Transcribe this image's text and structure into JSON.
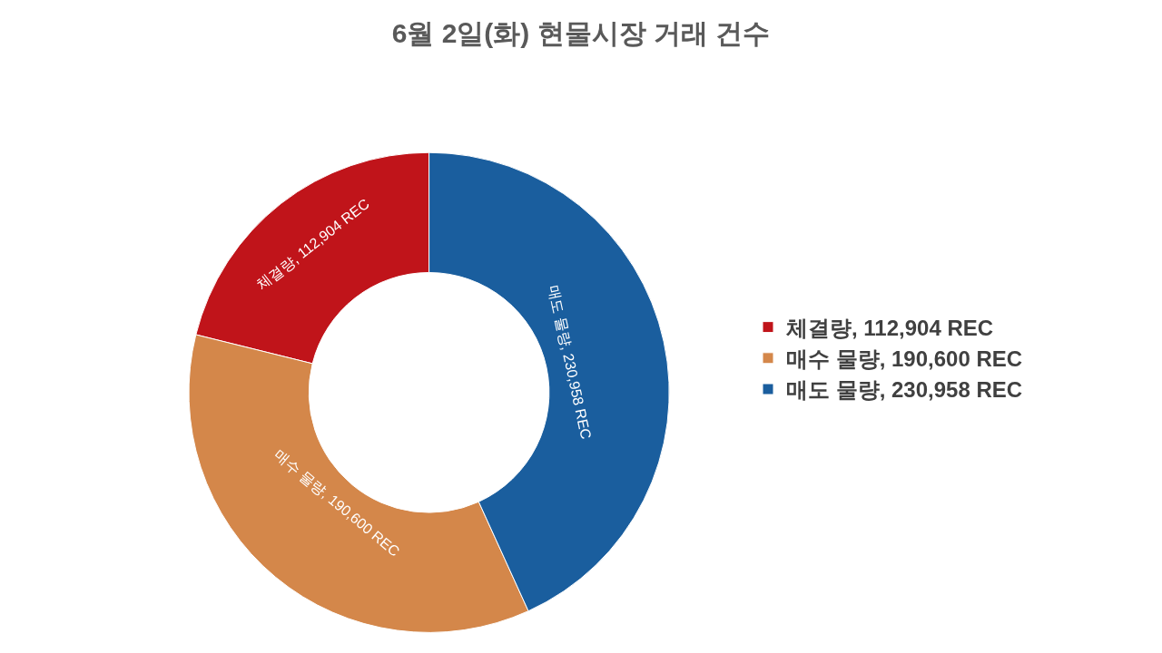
{
  "chart_data": {
    "type": "donut",
    "title": "6월 2일(화) 현물시장 거래 건수",
    "categories": [
      "체결량",
      "매수 물량",
      "매도 물량"
    ],
    "values": [
      112904,
      190600,
      230958
    ],
    "value_labels": [
      "112,904 REC",
      "190,600 REC",
      "230,958 REC"
    ],
    "colors": [
      "#c0141a",
      "#d4874a",
      "#1a5e9e"
    ],
    "legend": "right"
  }
}
